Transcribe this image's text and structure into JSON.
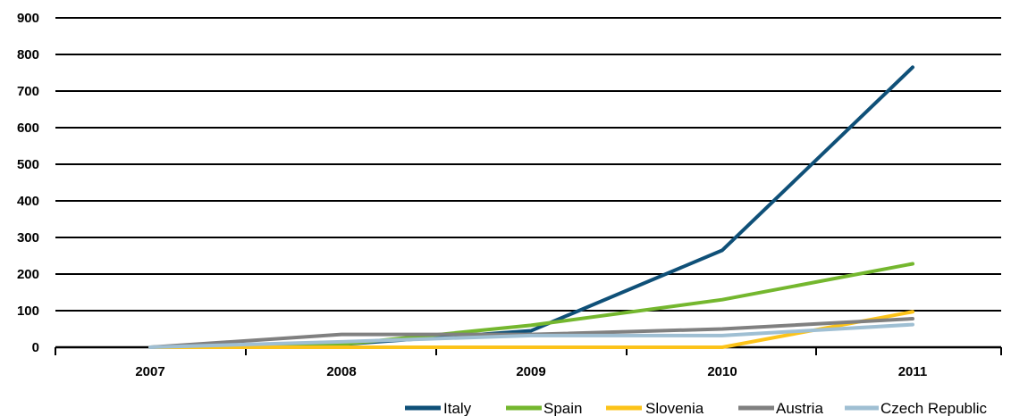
{
  "chart_data": {
    "type": "line",
    "categories": [
      "2007",
      "2008",
      "2009",
      "2010",
      "2011"
    ],
    "ylim": [
      0,
      900
    ],
    "y_ticks": [
      "0",
      "100",
      "200",
      "300",
      "400",
      "500",
      "600",
      "700",
      "800",
      "900"
    ],
    "grid": "horizontal",
    "legend_position": "bottom-right",
    "series": [
      {
        "name": "Italy",
        "color": "#0f5078",
        "values": [
          0,
          8,
          45,
          265,
          765
        ]
      },
      {
        "name": "Spain",
        "color": "#74b72e",
        "values": [
          0,
          8,
          60,
          130,
          228
        ]
      },
      {
        "name": "Slovenia",
        "color": "#fcc319",
        "values": [
          0,
          0,
          0,
          0,
          97
        ]
      },
      {
        "name": "Austria",
        "color": "#808080",
        "values": [
          0,
          35,
          35,
          50,
          78
        ]
      },
      {
        "name": "Czech Republic",
        "color": "#9fbfd3",
        "values": [
          0,
          15,
          32,
          32,
          62
        ]
      }
    ]
  }
}
